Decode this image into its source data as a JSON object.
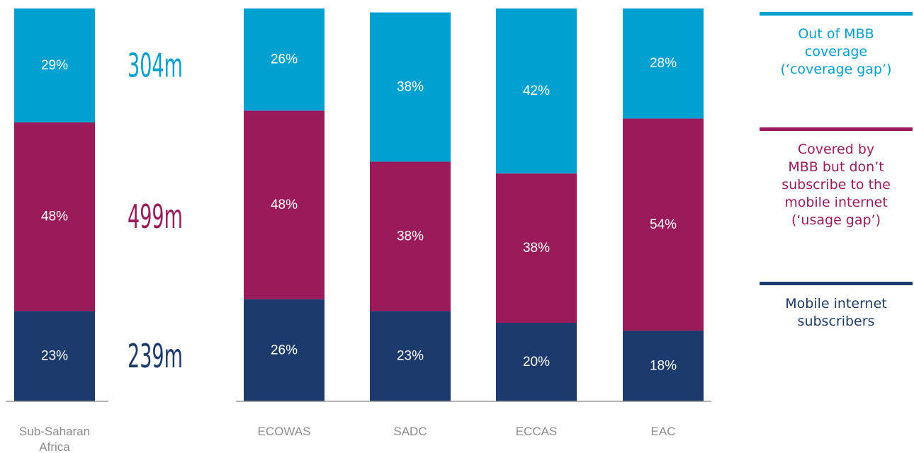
{
  "chart_data": {
    "type": "bar",
    "stacked": true,
    "categories": [
      "Sub-Saharan Africa",
      "ECOWAS",
      "SADC",
      "ECCAS",
      "EAC"
    ],
    "category_lines": [
      [
        "Sub-Saharan",
        "Africa"
      ],
      [
        "ECOWAS"
      ],
      [
        "SADC"
      ],
      [
        "ECCAS"
      ],
      [
        "EAC"
      ]
    ],
    "ylim": [
      0,
      100
    ],
    "series": [
      {
        "name": "Mobile internet subscribers",
        "color": "#1c3a6b",
        "values": [
          23,
          26,
          23,
          20,
          18
        ],
        "labels": [
          "23%",
          "26%",
          "23%",
          "20%",
          "18%"
        ]
      },
      {
        "name": "Covered by MBB but don’t subscribe to the mobile internet (‘usage gap’)",
        "color": "#9b1b5a",
        "values": [
          48,
          48,
          38,
          38,
          54
        ],
        "labels": [
          "48%",
          "48%",
          "38%",
          "38%",
          "54%"
        ]
      },
      {
        "name": "Out of MBB coverage (‘coverage gap’)",
        "color": "#00a0d1",
        "values": [
          29,
          26,
          38,
          42,
          28
        ],
        "labels": [
          "29%",
          "26%",
          "38%",
          "42%",
          "28%"
        ]
      }
    ],
    "absolute_labels": [
      {
        "text": "304m",
        "series": 2,
        "color": "#00a0d1"
      },
      {
        "text": "499m",
        "series": 1,
        "color": "#9b1b5a"
      },
      {
        "text": "239m",
        "series": 0,
        "color": "#1c3a6b"
      }
    ],
    "legend": [
      {
        "lines": [
          "Out of MBB",
          "coverage",
          "(‘coverage gap’)"
        ],
        "color": "#00a0d1"
      },
      {
        "lines": [
          "Covered by",
          "MBB but don’t",
          "subscribe to the",
          "mobile internet",
          "(‘usage gap’)"
        ],
        "color": "#9b1b5a"
      },
      {
        "lines": [
          "Mobile internet",
          "subscribers"
        ],
        "color": "#1c3a6b"
      }
    ],
    "legend_placement": "right",
    "grid": false
  }
}
